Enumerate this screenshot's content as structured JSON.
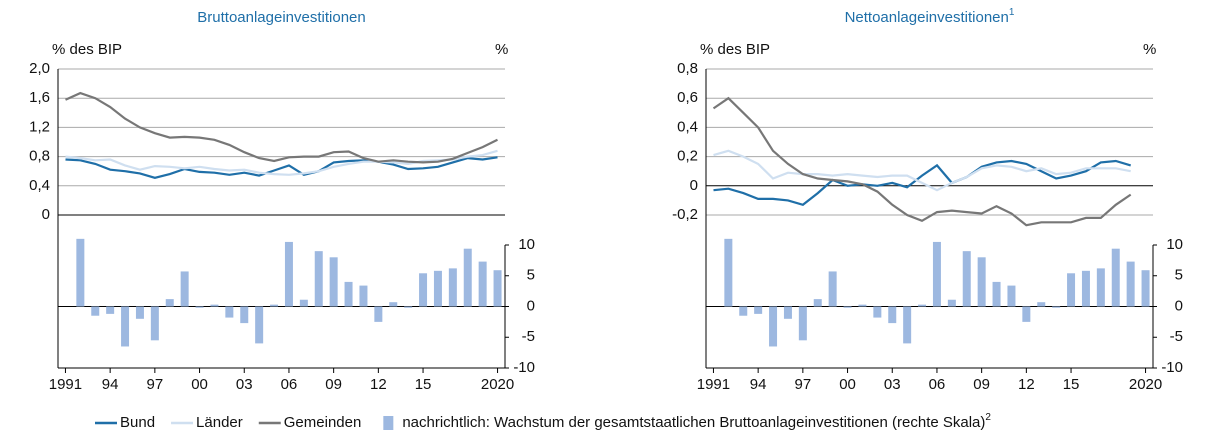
{
  "chart_data": [
    {
      "type": "line",
      "title": "Bruttoanlageinvestitionen",
      "title_color": "#1f6fa8",
      "ylabel": "% des BIP",
      "y2label": "%",
      "x": [
        1991,
        1992,
        1993,
        1994,
        1995,
        1996,
        1997,
        1998,
        1999,
        2000,
        2001,
        2002,
        2003,
        2004,
        2005,
        2006,
        2007,
        2008,
        2009,
        2010,
        2011,
        2012,
        2013,
        2014,
        2015,
        2016,
        2017,
        2018,
        2019,
        2020
      ],
      "xlim": [
        1990.5,
        2020.5
      ],
      "xticks": [
        1991,
        {
          "value": 1994,
          "label": "94"
        },
        {
          "value": 1997,
          "label": "97"
        },
        {
          "value": 2000,
          "label": "00"
        },
        {
          "value": 2003,
          "label": "03"
        },
        {
          "value": 2006,
          "label": "06"
        },
        {
          "value": 2009,
          "label": "09"
        },
        {
          "value": 2012,
          "label": "12"
        },
        {
          "value": 2015,
          "label": "15"
        },
        2020
      ],
      "ylim": [
        0,
        2
      ],
      "yticks": [
        0,
        {
          "value": 0.4,
          "label": "0,4"
        },
        {
          "value": 0.8,
          "label": "0,8"
        },
        {
          "value": 1.2,
          "label": "1,2"
        },
        {
          "value": 1.6,
          "label": "1,6"
        },
        {
          "value": 2,
          "label": "2,0"
        }
      ],
      "y2lim": [
        -10,
        10
      ],
      "y2ticks": [
        -10,
        -5,
        0,
        5,
        10
      ],
      "grid": true,
      "series": [
        {
          "name": "Bund",
          "type": "line",
          "color": "#1f6fa8",
          "values": [
            0.76,
            0.75,
            0.7,
            0.62,
            0.6,
            0.57,
            0.51,
            0.56,
            0.63,
            0.59,
            0.58,
            0.55,
            0.58,
            0.54,
            0.61,
            0.68,
            0.55,
            0.6,
            0.72,
            0.74,
            0.75,
            0.73,
            0.69,
            0.63,
            0.64,
            0.66,
            0.72,
            0.78,
            0.76,
            0.79
          ]
        },
        {
          "name": "Länder",
          "type": "line",
          "color": "#cfdff0",
          "values": [
            0.8,
            0.78,
            0.75,
            0.76,
            0.68,
            0.62,
            0.67,
            0.66,
            0.64,
            0.66,
            0.63,
            0.61,
            0.62,
            0.58,
            0.56,
            0.55,
            0.57,
            0.6,
            0.66,
            0.7,
            0.73,
            0.73,
            0.72,
            0.7,
            0.74,
            0.75,
            0.76,
            0.8,
            0.82,
            0.88
          ]
        },
        {
          "name": "Gemeinden",
          "type": "line",
          "color": "#777777",
          "values": [
            1.58,
            1.67,
            1.6,
            1.48,
            1.32,
            1.2,
            1.12,
            1.06,
            1.07,
            1.06,
            1.03,
            0.96,
            0.86,
            0.78,
            0.74,
            0.79,
            0.8,
            0.8,
            0.86,
            0.87,
            0.78,
            0.73,
            0.75,
            0.73,
            0.72,
            0.73,
            0.77,
            0.85,
            0.93,
            1.03
          ]
        },
        {
          "name": "nachrichtlich: Wachstum der gesamtstaatlichen Bruttoanlageinvestitionen (rechte Skala)",
          "name_note": "2",
          "type": "bar",
          "axis": "y2",
          "color": "#9db8e0",
          "values": [
            null,
            11,
            -1.5,
            -1.2,
            -6.5,
            -2,
            -5.5,
            1.2,
            5.7,
            -0.2,
            0.3,
            -1.8,
            -2.7,
            -6,
            0.3,
            10.5,
            1.1,
            9,
            8,
            4,
            3.4,
            -2.5,
            0.7,
            -0.2,
            5.4,
            5.8,
            6.2,
            9.4,
            7.3,
            5.9
          ]
        }
      ]
    },
    {
      "type": "line",
      "title": "Nettoanlageinvestitionen",
      "title_note": "1",
      "title_color": "#1f6fa8",
      "ylabel": "% des BIP",
      "y2label": "%",
      "x": [
        1991,
        1992,
        1993,
        1994,
        1995,
        1996,
        1997,
        1998,
        1999,
        2000,
        2001,
        2002,
        2003,
        2004,
        2005,
        2006,
        2007,
        2008,
        2009,
        2010,
        2011,
        2012,
        2013,
        2014,
        2015,
        2016,
        2017,
        2018,
        2019,
        2020
      ],
      "xlim": [
        1990.5,
        2020.5
      ],
      "xticks": [
        1991,
        {
          "value": 1994,
          "label": "94"
        },
        {
          "value": 1997,
          "label": "97"
        },
        {
          "value": 2000,
          "label": "00"
        },
        {
          "value": 2003,
          "label": "03"
        },
        {
          "value": 2006,
          "label": "06"
        },
        {
          "value": 2009,
          "label": "09"
        },
        {
          "value": 2012,
          "label": "12"
        },
        {
          "value": 2015,
          "label": "15"
        },
        2020
      ],
      "ylim": [
        -0.2,
        0.8
      ],
      "yticks": [
        {
          "value": -0.2,
          "label": "-0,2"
        },
        0,
        {
          "value": 0.2,
          "label": "0,2"
        },
        {
          "value": 0.4,
          "label": "0,4"
        },
        {
          "value": 0.6,
          "label": "0,6"
        },
        {
          "value": 0.8,
          "label": "0,8"
        }
      ],
      "y2lim": [
        -10,
        10
      ],
      "y2ticks": [
        -10,
        -5,
        0,
        5,
        10
      ],
      "grid": true,
      "series": [
        {
          "name": "Bund",
          "type": "line",
          "color": "#1f6fa8",
          "values": [
            -0.03,
            -0.02,
            -0.05,
            -0.09,
            -0.09,
            -0.1,
            -0.13,
            -0.05,
            0.04,
            0.0,
            0.01,
            0.0,
            0.02,
            -0.01,
            0.07,
            0.14,
            0.02,
            0.06,
            0.13,
            0.16,
            0.17,
            0.15,
            0.1,
            0.05,
            0.07,
            0.1,
            0.16,
            0.17,
            0.14,
            null
          ]
        },
        {
          "name": "Länder",
          "type": "line",
          "color": "#cfdff0",
          "values": [
            0.21,
            0.24,
            0.2,
            0.15,
            0.05,
            0.09,
            0.08,
            0.08,
            0.07,
            0.08,
            0.07,
            0.06,
            0.07,
            0.07,
            0.02,
            -0.03,
            0.02,
            0.06,
            0.12,
            0.14,
            0.13,
            0.1,
            0.12,
            0.08,
            0.09,
            0.12,
            0.12,
            0.12,
            0.1,
            null
          ]
        },
        {
          "name": "Gemeinden",
          "type": "line",
          "color": "#777777",
          "values": [
            0.53,
            0.6,
            0.5,
            0.4,
            0.24,
            0.15,
            0.08,
            0.05,
            0.04,
            0.03,
            0.01,
            -0.04,
            -0.13,
            -0.2,
            -0.24,
            -0.18,
            -0.17,
            -0.18,
            -0.19,
            -0.14,
            -0.19,
            -0.27,
            -0.25,
            -0.25,
            -0.25,
            -0.22,
            -0.22,
            -0.13,
            -0.06,
            null
          ]
        },
        {
          "name": "nachrichtlich: Wachstum der gesamtstaatlichen Bruttoanlageinvestitionen (rechte Skala)",
          "name_note": "2",
          "type": "bar",
          "axis": "y2",
          "color": "#9db8e0",
          "values": [
            null,
            11,
            -1.5,
            -1.2,
            -6.5,
            -2,
            -5.5,
            1.2,
            5.7,
            -0.2,
            0.3,
            -1.8,
            -2.7,
            -6,
            0.3,
            10.5,
            1.1,
            9,
            8,
            4,
            3.4,
            -2.5,
            0.7,
            -0.2,
            5.4,
            5.8,
            6.2,
            9.4,
            7.3,
            5.9
          ]
        }
      ]
    }
  ]
}
